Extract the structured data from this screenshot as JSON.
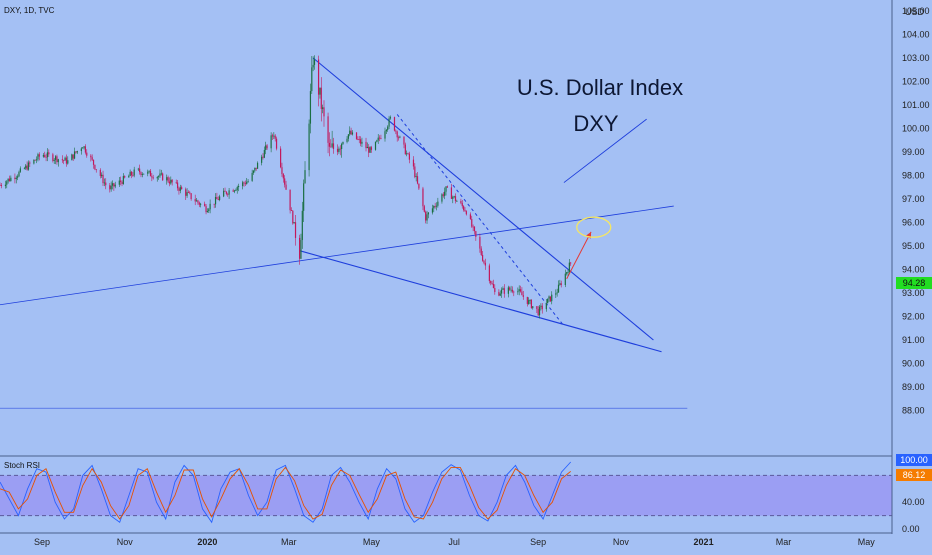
{
  "app": {
    "symbol_label": "DXY, 1D, TVC",
    "currency": "USD"
  },
  "chart_data": [
    {
      "type": "candlestick",
      "title": "U.S. Dollar Index",
      "subtitle": "DXY",
      "ylabel": "USD",
      "ylim": [
        87.5,
        105.5
      ],
      "y_ticks": [
        "105.00",
        "104.00",
        "103.00",
        "102.00",
        "101.00",
        "100.00",
        "99.00",
        "98.00",
        "97.00",
        "96.00",
        "95.00",
        "94.00",
        "93.00",
        "92.00",
        "91.00",
        "90.00",
        "89.00",
        "88.00"
      ],
      "last_price": "94.28",
      "x_ticks": [
        "Sep",
        "Nov",
        "2020",
        "Mar",
        "May",
        "Jul",
        "Sep",
        "Nov",
        "2021",
        "Mar",
        "May"
      ],
      "x_range": [
        "2019-08-01",
        "2021-05-20"
      ],
      "price_path": [
        [
          "2019-08-01",
          97.6
        ],
        [
          "2019-08-15",
          98.1
        ],
        [
          "2019-09-01",
          98.9
        ],
        [
          "2019-09-20",
          98.6
        ],
        [
          "2019-10-01",
          99.3
        ],
        [
          "2019-10-20",
          97.4
        ],
        [
          "2019-11-10",
          98.2
        ],
        [
          "2019-12-01",
          97.9
        ],
        [
          "2019-12-31",
          96.6
        ],
        [
          "2020-01-15",
          97.3
        ],
        [
          "2020-02-01",
          97.8
        ],
        [
          "2020-02-19",
          99.8
        ],
        [
          "2020-03-09",
          94.8
        ],
        [
          "2020-03-19",
          103.0
        ],
        [
          "2020-03-31",
          99.0
        ],
        [
          "2020-04-15",
          99.8
        ],
        [
          "2020-05-01",
          99.0
        ],
        [
          "2020-05-15",
          100.4
        ],
        [
          "2020-06-01",
          98.3
        ],
        [
          "2020-06-10",
          96.2
        ],
        [
          "2020-06-25",
          97.4
        ],
        [
          "2020-07-10",
          96.5
        ],
        [
          "2020-07-31",
          93.0
        ],
        [
          "2020-08-15",
          93.2
        ],
        [
          "2020-09-01",
          92.2
        ],
        [
          "2020-09-15",
          93.1
        ],
        [
          "2020-09-25",
          94.28
        ]
      ],
      "annotations": {
        "resistance_line": [
          [
            "2020-03-19",
            103.0
          ],
          [
            "2020-11-25",
            91.0
          ]
        ],
        "support_line": [
          [
            "2020-03-09",
            94.8
          ],
          [
            "2020-12-01",
            90.5
          ]
        ],
        "dashed_line": [
          [
            "2020-05-20",
            100.6
          ],
          [
            "2020-09-20",
            91.6
          ]
        ],
        "long_trendline": [
          [
            "2019-08-01",
            92.5
          ],
          [
            "2020-12-10",
            96.7
          ]
        ],
        "projection_line": [
          [
            "2020-09-20",
            97.7
          ],
          [
            "2020-11-20",
            100.4
          ]
        ],
        "target_arrow": [
          [
            "2020-09-22",
            93.6
          ],
          [
            "2020-10-10",
            95.6
          ]
        ],
        "target_ellipse_center": [
          "2020-10-12",
          95.8
        ],
        "horizontal_line": [
          [
            "2019-08-01",
            88.1
          ],
          [
            "2020-12-20",
            88.1
          ]
        ]
      }
    },
    {
      "type": "line",
      "title": "Stoch RSI",
      "ylim": [
        -5,
        105
      ],
      "y_ticks": [
        "100.00",
        "40.00",
        "0.00"
      ],
      "bands": [
        20,
        80
      ],
      "current_values": [
        "100.00",
        "86.12"
      ],
      "series": [
        {
          "color": "#2962ff",
          "values": [
            70,
            45,
            20,
            60,
            90,
            85,
            40,
            15,
            30,
            80,
            95,
            60,
            20,
            10,
            50,
            90,
            85,
            40,
            15,
            70,
            95,
            80,
            30,
            10,
            60,
            85,
            90,
            50,
            20,
            40,
            88,
            95,
            60,
            20,
            10,
            30,
            80,
            92,
            70,
            40,
            15,
            60,
            90,
            75,
            30,
            10,
            20,
            55,
            85,
            96,
            88,
            50,
            20,
            12,
            40,
            80,
            95,
            70,
            35,
            15,
            50,
            85,
            100
          ]
        },
        {
          "color": "#e65100",
          "values": [
            60,
            55,
            30,
            45,
            80,
            90,
            55,
            25,
            25,
            65,
            90,
            70,
            35,
            15,
            35,
            80,
            90,
            55,
            25,
            50,
            88,
            88,
            45,
            18,
            45,
            75,
            90,
            65,
            30,
            30,
            75,
            92,
            72,
            35,
            15,
            22,
            65,
            88,
            80,
            52,
            25,
            45,
            80,
            85,
            45,
            18,
            15,
            40,
            75,
            92,
            92,
            65,
            32,
            15,
            28,
            65,
            90,
            80,
            50,
            25,
            40,
            75,
            86
          ]
        }
      ]
    }
  ],
  "colors": {
    "background": "#a4c0f4",
    "candle_up": "#1a6e42",
    "candle_down": "#c2185b",
    "trendline": "#1e3edc",
    "stoch_band": "#9a98f2",
    "last_price_badge": "#22dd22",
    "rsi_k_badge": "#2962ff",
    "rsi_d_badge": "#f57c00"
  }
}
